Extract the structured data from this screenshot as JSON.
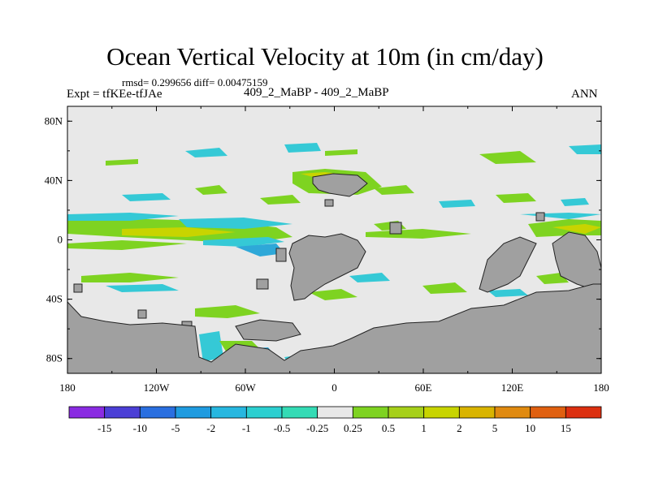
{
  "header": {
    "title": "Ocean Vertical Velocity at 10m (in cm/day)",
    "stats": "rmsd= 0.299656 diff= 0.00475159",
    "experiment": "Expt = tfKEe-tfJAe",
    "center_label": "409_2_MaBP - 409_2_MaBP",
    "season": "ANN"
  },
  "map": {
    "y_ticks": [
      "80N",
      "40N",
      "0",
      "40S",
      "80S"
    ],
    "x_ticks": [
      "180",
      "120W",
      "60W",
      "0",
      "60E",
      "120E",
      "180"
    ],
    "lat_range": [
      -90,
      90
    ],
    "lon_range": [
      -180,
      180
    ],
    "colors": {
      "background": "#e8e8e8",
      "land": "#a0a0a0",
      "positive_small": "#7ed321",
      "positive_mid": "#c8d400",
      "negative_small": "#35c9d6",
      "negative_mid": "#2ea8d8"
    }
  },
  "colorbar": {
    "labels": [
      "-15",
      "-10",
      "-5",
      "-2",
      "-1",
      "-0.5",
      "-0.25",
      "0.25",
      "0.5",
      "1",
      "2",
      "5",
      "10",
      "15"
    ],
    "colors": [
      "#8a2be2",
      "#4b3fd6",
      "#2a6fe0",
      "#1f9be0",
      "#27b7e0",
      "#2ccfd0",
      "#34dbb5",
      "#e8e8e8",
      "#7ed321",
      "#a6d01a",
      "#c8d400",
      "#d9b400",
      "#e08a10",
      "#e06010",
      "#dc3010"
    ]
  }
}
